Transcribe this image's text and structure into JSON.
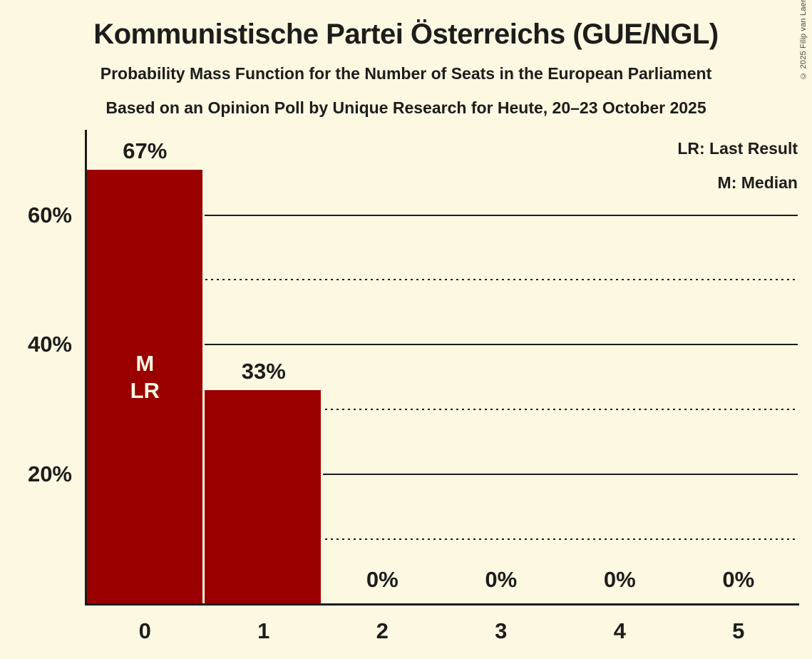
{
  "header": {
    "title": "Kommunistische Partei Österreichs (GUE/NGL)",
    "subtitle1": "Probability Mass Function for the Number of Seats in the European Parliament",
    "subtitle2": "Based on an Opinion Poll by Unique Research for Heute, 20–23 October 2025"
  },
  "copyright": "© 2025 Filip van Laenen",
  "legend": {
    "items": [
      {
        "label": "LR: Last Result"
      },
      {
        "label": "M: Median"
      }
    ]
  },
  "colors": {
    "background": "#FDF8E2",
    "bar": "#9A0000",
    "text": "#1D1D1B",
    "inside_bar_text": "#FDF8E2"
  },
  "chart_data": {
    "type": "bar",
    "title": "Kommunistische Partei Österreichs (GUE/NGL)",
    "categories": [
      "0",
      "1",
      "2",
      "3",
      "4",
      "5"
    ],
    "values": [
      67,
      33,
      0,
      0,
      0,
      0
    ],
    "bar_labels": [
      "67%",
      "33%",
      "0%",
      "0%",
      "0%",
      "0%"
    ],
    "bar_annotations": [
      [
        "M",
        "LR"
      ],
      [],
      [],
      [],
      [],
      []
    ],
    "median_seats": 0,
    "last_result_seats": 0,
    "y_ticks": [
      {
        "value": 60,
        "label": "60%"
      },
      {
        "value": 40,
        "label": "40%"
      },
      {
        "value": 20,
        "label": "20%"
      }
    ],
    "solid_gridlines": [
      60,
      40,
      20
    ],
    "dotted_gridlines": [
      50,
      30,
      10
    ],
    "ylim": [
      0,
      73
    ],
    "grid": "horizontal-only",
    "legend_position": "top-right",
    "legend_entries": [
      "LR: Last Result",
      "M: Median"
    ]
  }
}
